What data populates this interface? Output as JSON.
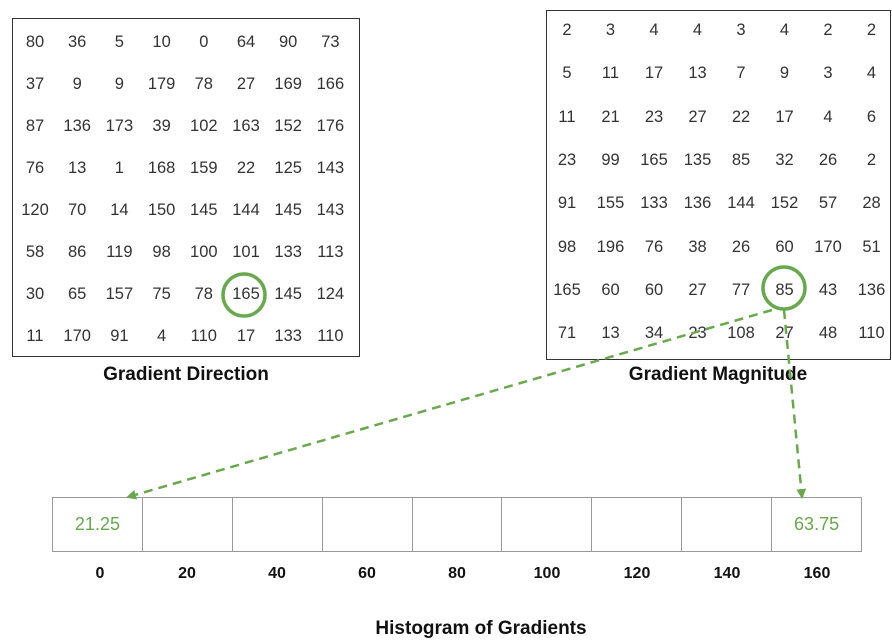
{
  "gradient_direction": {
    "caption": "Gradient Direction",
    "rows": [
      [
        "80",
        "36",
        "5",
        "10",
        "0",
        "64",
        "90",
        "73"
      ],
      [
        "37",
        "9",
        "9",
        "179",
        "78",
        "27",
        "169",
        "166"
      ],
      [
        "87",
        "136",
        "173",
        "39",
        "102",
        "163",
        "152",
        "176"
      ],
      [
        "76",
        "13",
        "1",
        "168",
        "159",
        "22",
        "125",
        "143"
      ],
      [
        "120",
        "70",
        "14",
        "150",
        "145",
        "144",
        "145",
        "143"
      ],
      [
        "58",
        "86",
        "119",
        "98",
        "100",
        "101",
        "133",
        "113"
      ],
      [
        "30",
        "65",
        "157",
        "75",
        "78",
        "165",
        "145",
        "124"
      ],
      [
        "11",
        "170",
        "91",
        "4",
        "110",
        "17",
        "133",
        "110"
      ]
    ],
    "highlight": {
      "row": 6,
      "col": 5
    }
  },
  "gradient_magnitude": {
    "caption": "Gradient Magnitude",
    "rows": [
      [
        "2",
        "3",
        "4",
        "4",
        "3",
        "4",
        "2",
        "2"
      ],
      [
        "5",
        "11",
        "17",
        "13",
        "7",
        "9",
        "3",
        "4"
      ],
      [
        "11",
        "21",
        "23",
        "27",
        "22",
        "17",
        "4",
        "6"
      ],
      [
        "23",
        "99",
        "165",
        "135",
        "85",
        "32",
        "26",
        "2"
      ],
      [
        "91",
        "155",
        "133",
        "136",
        "144",
        "152",
        "57",
        "28"
      ],
      [
        "98",
        "196",
        "76",
        "38",
        "26",
        "60",
        "170",
        "51"
      ],
      [
        "165",
        "60",
        "60",
        "27",
        "77",
        "85",
        "43",
        "136"
      ],
      [
        "71",
        "13",
        "34",
        "23",
        "108",
        "27",
        "48",
        "110"
      ]
    ],
    "highlight": {
      "row": 6,
      "col": 5
    }
  },
  "histogram": {
    "title": "Histogram of Gradients",
    "bins": [
      "21.25",
      "",
      "",
      "",
      "",
      "",
      "",
      "",
      "63.75"
    ],
    "ticks": [
      "0",
      "20",
      "40",
      "60",
      "80",
      "100",
      "120",
      "140",
      "160"
    ]
  },
  "colors": {
    "accent": "#6aa84f",
    "border": "#333333",
    "bin_border": "#9a9a9a"
  }
}
